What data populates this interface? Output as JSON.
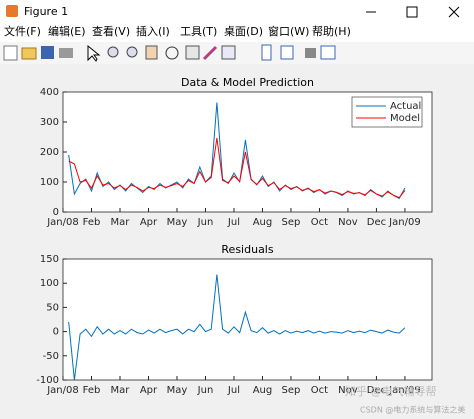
{
  "window": {
    "title": "Figure 1",
    "menu": [
      "文件(F)",
      "编辑(E)",
      "查看(V)",
      "插入(I)",
      "工具(T)",
      "桌面(D)",
      "窗口(W)",
      "帮助(H)"
    ]
  },
  "watermark": {
    "zhihu": "知乎 @电气辅导帮",
    "csdn": "CSDN @电力系统与算法之美"
  },
  "chart_data": [
    {
      "type": "line",
      "title": "Data & Model Prediction",
      "x": [
        0.2,
        0.4,
        0.6,
        0.8,
        1.0,
        1.2,
        1.4,
        1.6,
        1.8,
        2.0,
        2.2,
        2.4,
        2.6,
        2.8,
        3.0,
        3.2,
        3.4,
        3.6,
        3.8,
        4.0,
        4.2,
        4.4,
        4.6,
        4.8,
        5.0,
        5.2,
        5.4,
        5.6,
        5.8,
        6.0,
        6.2,
        6.4,
        6.6,
        6.8,
        7.0,
        7.2,
        7.4,
        7.6,
        7.8,
        8.0,
        8.2,
        8.4,
        8.6,
        8.8,
        9.0,
        9.2,
        9.4,
        9.6,
        9.8,
        10.0,
        10.2,
        10.4,
        10.6,
        10.8,
        11.0,
        11.2,
        11.4,
        11.6,
        11.8,
        12.0
      ],
      "series": [
        {
          "name": "Actual",
          "color": "#0072bd",
          "values": [
            190,
            60,
            95,
            110,
            70,
            130,
            85,
            100,
            75,
            90,
            70,
            95,
            80,
            65,
            85,
            75,
            95,
            80,
            90,
            100,
            80,
            110,
            95,
            150,
            100,
            120,
            365,
            110,
            95,
            130,
            100,
            240,
            110,
            90,
            120,
            85,
            100,
            70,
            90,
            75,
            85,
            70,
            80,
            65,
            75,
            60,
            70,
            65,
            55,
            70,
            60,
            65,
            55,
            75,
            60,
            50,
            70,
            55,
            45,
            80
          ]
        },
        {
          "name": "Model",
          "color": "#ff0000",
          "values": [
            170,
            160,
            100,
            105,
            80,
            120,
            90,
            95,
            80,
            88,
            75,
            90,
            82,
            70,
            82,
            78,
            90,
            82,
            88,
            95,
            85,
            105,
            95,
            135,
            100,
            115,
            247,
            105,
            98,
            120,
            102,
            200,
            108,
            92,
            112,
            88,
            98,
            75,
            88,
            78,
            84,
            72,
            78,
            68,
            74,
            63,
            70,
            66,
            58,
            68,
            62,
            64,
            57,
            72,
            60,
            53,
            67,
            56,
            48,
            72
          ]
        }
      ],
      "xlim": [
        0,
        12.95
      ],
      "xticks": [
        {
          "value": 0,
          "label": "Jan/08"
        },
        {
          "value": 1,
          "label": "Feb"
        },
        {
          "value": 2,
          "label": "Mar"
        },
        {
          "value": 3,
          "label": "Apr"
        },
        {
          "value": 4,
          "label": "May"
        },
        {
          "value": 5,
          "label": "Jun"
        },
        {
          "value": 6,
          "label": "Jul"
        },
        {
          "value": 7,
          "label": "Aug"
        },
        {
          "value": 8,
          "label": "Sep"
        },
        {
          "value": 9,
          "label": "Oct"
        },
        {
          "value": 10,
          "label": "Nov"
        },
        {
          "value": 11,
          "label": "Dec"
        },
        {
          "value": 12,
          "label": "Jan/09"
        }
      ],
      "ylim": [
        0,
        400
      ],
      "yticks": [
        0,
        100,
        200,
        300,
        400
      ],
      "legend": "upper right",
      "grid": false
    },
    {
      "type": "line",
      "title": "Residuals",
      "x": [
        0.2,
        0.4,
        0.6,
        0.8,
        1.0,
        1.2,
        1.4,
        1.6,
        1.8,
        2.0,
        2.2,
        2.4,
        2.6,
        2.8,
        3.0,
        3.2,
        3.4,
        3.6,
        3.8,
        4.0,
        4.2,
        4.4,
        4.6,
        4.8,
        5.0,
        5.2,
        5.4,
        5.6,
        5.8,
        6.0,
        6.2,
        6.4,
        6.6,
        6.8,
        7.0,
        7.2,
        7.4,
        7.6,
        7.8,
        8.0,
        8.2,
        8.4,
        8.6,
        8.8,
        9.0,
        9.2,
        9.4,
        9.6,
        9.8,
        10.0,
        10.2,
        10.4,
        10.6,
        10.8,
        11.0,
        11.2,
        11.4,
        11.6,
        11.8,
        12.0
      ],
      "series": [
        {
          "color": "#0072bd",
          "values": [
            20,
            -100,
            -5,
            5,
            -10,
            10,
            -5,
            5,
            -5,
            2,
            -5,
            5,
            -2,
            -5,
            3,
            -3,
            5,
            -2,
            2,
            5,
            -5,
            5,
            0,
            15,
            0,
            5,
            118,
            5,
            -3,
            10,
            -2,
            40,
            2,
            -2,
            8,
            -3,
            2,
            -5,
            2,
            -3,
            1,
            -2,
            2,
            -3,
            1,
            -3,
            0,
            -1,
            -3,
            2,
            -2,
            1,
            -2,
            3,
            0,
            -3,
            3,
            -1,
            -3,
            8
          ]
        }
      ],
      "xlim": [
        0,
        12.95
      ],
      "xticks": [
        {
          "value": 0,
          "label": "Jan/08"
        },
        {
          "value": 1,
          "label": "Feb"
        },
        {
          "value": 2,
          "label": "Mar"
        },
        {
          "value": 3,
          "label": "Apr"
        },
        {
          "value": 4,
          "label": "May"
        },
        {
          "value": 5,
          "label": "Jun"
        },
        {
          "value": 6,
          "label": "Jul"
        },
        {
          "value": 7,
          "label": "Aug"
        },
        {
          "value": 8,
          "label": "Sep"
        },
        {
          "value": 9,
          "label": "Oct"
        },
        {
          "value": 10,
          "label": "Nov"
        },
        {
          "value": 11,
          "label": "Dec"
        },
        {
          "value": 12,
          "label": "Jan/09"
        }
      ],
      "ylim": [
        -100,
        150
      ],
      "yticks": [
        -100,
        -50,
        0,
        50,
        100,
        150
      ],
      "grid": false
    }
  ]
}
